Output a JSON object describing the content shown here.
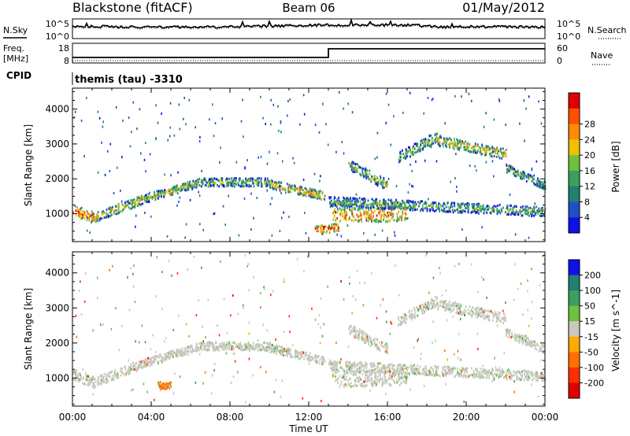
{
  "header": {
    "station": "Blackstone (fitACF)",
    "beam": "Beam 06",
    "date": "01/May/2012"
  },
  "side_labels": {
    "nsky": "N.Sky",
    "freq_line1": "Freq.",
    "freq_line2": "[MHz]",
    "cpid": "CPID",
    "nsearch": "N.Search",
    "nave": "Nave"
  },
  "cpid_text": "themis (tau) -3310",
  "noise_panel": {
    "ticks_left": [
      "10^5",
      "10^0"
    ],
    "ticks_right": [
      "10^5",
      "10^0"
    ]
  },
  "freq_panel": {
    "ticks_left": [
      "18",
      "8"
    ],
    "ticks_right": [
      "60",
      "0"
    ]
  },
  "time_axis": {
    "label": "Time UT",
    "ticks": [
      "00:00",
      "04:00",
      "08:00",
      "12:00",
      "16:00",
      "20:00",
      "00:00"
    ]
  },
  "chart_data": [
    {
      "type": "heatmap",
      "quantity": "power",
      "ylabel": "Slant Range [km]",
      "xlim": [
        "00:00",
        "24:00"
      ],
      "ylim": [
        200,
        4600
      ],
      "yticks": [
        "1000",
        "2000",
        "3000",
        "4000"
      ],
      "colorbar": {
        "label": "Power [dB]",
        "ticks": [
          "4",
          "8",
          "12",
          "16",
          "20",
          "24",
          "28"
        ],
        "colors": [
          "#1010e8",
          "#2050c8",
          "#228070",
          "#3aa060",
          "#70c040",
          "#f0c000",
          "#ff8c00",
          "#ff5000",
          "#e00000"
        ]
      },
      "echo_bands": [
        {
          "start_h": 0.0,
          "end_h": 1.2,
          "range_start_km": 1100,
          "range_end_km": 850,
          "width_km": 160,
          "level": 22
        },
        {
          "start_h": 1.2,
          "end_h": 3.5,
          "range_start_km": 900,
          "range_end_km": 1400,
          "width_km": 140,
          "level": 17
        },
        {
          "start_h": 3.5,
          "end_h": 6.5,
          "range_start_km": 1400,
          "range_end_km": 1900,
          "width_km": 120,
          "level": 15
        },
        {
          "start_h": 6.5,
          "end_h": 10.0,
          "range_start_km": 1900,
          "range_end_km": 1900,
          "width_km": 120,
          "level": 13
        },
        {
          "start_h": 10.0,
          "end_h": 12.8,
          "range_start_km": 1850,
          "range_end_km": 1500,
          "width_km": 120,
          "level": 18
        },
        {
          "start_h": 12.3,
          "end_h": 13.5,
          "range_start_km": 520,
          "range_end_km": 600,
          "width_km": 120,
          "level": 24
        },
        {
          "start_h": 13.2,
          "end_h": 17.0,
          "range_start_km": 950,
          "range_end_km": 1000,
          "width_km": 220,
          "level": 22
        },
        {
          "start_h": 14.0,
          "end_h": 16.0,
          "range_start_km": 2400,
          "range_end_km": 1800,
          "width_km": 150,
          "level": 13
        },
        {
          "start_h": 16.5,
          "end_h": 18.5,
          "range_start_km": 2600,
          "range_end_km": 3200,
          "width_km": 150,
          "level": 14
        },
        {
          "start_h": 18.5,
          "end_h": 22.0,
          "range_start_km": 3100,
          "range_end_km": 2700,
          "width_km": 150,
          "level": 17
        },
        {
          "start_h": 22.0,
          "end_h": 24.0,
          "range_start_km": 2300,
          "range_end_km": 1800,
          "width_km": 120,
          "level": 12
        },
        {
          "start_h": 13.0,
          "end_h": 24.0,
          "range_start_km": 1350,
          "range_end_km": 1050,
          "width_km": 140,
          "level": 12
        }
      ]
    },
    {
      "type": "heatmap",
      "quantity": "velocity",
      "ylabel": "Slant Range [km]",
      "xlim": [
        "00:00",
        "24:00"
      ],
      "ylim": [
        200,
        4600
      ],
      "yticks": [
        "1000",
        "2000",
        "3000",
        "4000"
      ],
      "colorbar": {
        "label": "Velocity [m s^-1]",
        "ticks": [
          "200",
          "100",
          "50",
          "15",
          "-15",
          "-50",
          "-100",
          "-200"
        ],
        "colors": [
          "#1010e8",
          "#228070",
          "#3aa060",
          "#70c040",
          "#c8c8c0",
          "#ffaa00",
          "#ff7000",
          "#ff3000",
          "#e00000"
        ]
      },
      "echo_bands": [
        {
          "start_h": 0.0,
          "end_h": 1.2,
          "range_start_km": 1100,
          "range_end_km": 850,
          "width_km": 160,
          "level": 0
        },
        {
          "start_h": 1.2,
          "end_h": 3.5,
          "range_start_km": 900,
          "range_end_km": 1400,
          "width_km": 140,
          "level": 0
        },
        {
          "start_h": 3.5,
          "end_h": 6.5,
          "range_start_km": 1400,
          "range_end_km": 1900,
          "width_km": 120,
          "level": 0
        },
        {
          "start_h": 6.5,
          "end_h": 10.0,
          "range_start_km": 1900,
          "range_end_km": 1900,
          "width_km": 120,
          "level": 5
        },
        {
          "start_h": 10.0,
          "end_h": 12.8,
          "range_start_km": 1850,
          "range_end_km": 1500,
          "width_km": 120,
          "level": 0
        },
        {
          "start_h": 4.3,
          "end_h": 5.0,
          "range_start_km": 780,
          "range_end_km": 780,
          "width_km": 100,
          "level": -60
        },
        {
          "start_h": 13.2,
          "end_h": 17.0,
          "range_start_km": 950,
          "range_end_km": 1000,
          "width_km": 220,
          "level": 0
        },
        {
          "start_h": 14.0,
          "end_h": 16.0,
          "range_start_km": 2400,
          "range_end_km": 1800,
          "width_km": 150,
          "level": 0
        },
        {
          "start_h": 16.5,
          "end_h": 18.5,
          "range_start_km": 2600,
          "range_end_km": 3200,
          "width_km": 150,
          "level": 0
        },
        {
          "start_h": 18.5,
          "end_h": 22.0,
          "range_start_km": 3100,
          "range_end_km": 2700,
          "width_km": 150,
          "level": 0
        },
        {
          "start_h": 22.0,
          "end_h": 24.0,
          "range_start_km": 2300,
          "range_end_km": 1800,
          "width_km": 120,
          "level": 0
        },
        {
          "start_h": 13.0,
          "end_h": 24.0,
          "range_start_km": 1350,
          "range_end_km": 1050,
          "width_km": 140,
          "level": 0
        }
      ]
    }
  ]
}
